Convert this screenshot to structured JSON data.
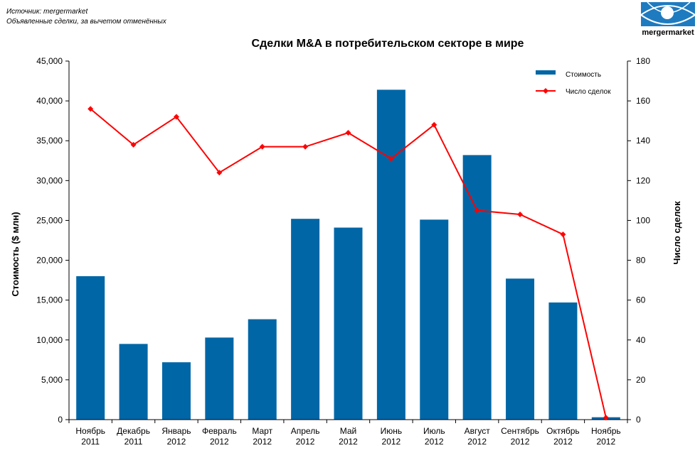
{
  "source": {
    "line1": "Источник: mergermarket",
    "line2": "Объявленные сделки, за вычетом отменённых"
  },
  "logo": {
    "text": "mergermarket",
    "color": "#1f7bbf"
  },
  "chart_data": {
    "type": "bar+line",
    "title": "Сделки M&A в потребительском секторе в мире",
    "ylabel": "Стоимость ($ млн)",
    "y2label": "Число сделок",
    "ylim": [
      0,
      45000
    ],
    "y2lim": [
      0,
      180
    ],
    "yticks": [
      "0",
      "5,000",
      "10,000",
      "15,000",
      "20,000",
      "25,000",
      "30,000",
      "35,000",
      "40,000",
      "45,000"
    ],
    "y2ticks": [
      "0",
      "20",
      "40",
      "60",
      "80",
      "100",
      "120",
      "140",
      "160",
      "180"
    ],
    "categories": [
      [
        "Ноябрь",
        "2011"
      ],
      [
        "Декабрь",
        "2011"
      ],
      [
        "Январь",
        "2012"
      ],
      [
        "Февраль",
        "2012"
      ],
      [
        "Март",
        "2012"
      ],
      [
        "Апрель",
        "2012"
      ],
      [
        "Май",
        "2012"
      ],
      [
        "Июнь",
        "2012"
      ],
      [
        "Июль",
        "2012"
      ],
      [
        "Август",
        "2012"
      ],
      [
        "Сентябрь",
        "2012"
      ],
      [
        "Октябрь",
        "2012"
      ],
      [
        "Ноябрь",
        "2012"
      ]
    ],
    "series": [
      {
        "name": "Стоимость",
        "type": "bar",
        "axis": "left",
        "color": "#0066a6",
        "values": [
          18000,
          9500,
          7200,
          10300,
          12600,
          25200,
          24100,
          41400,
          25100,
          33200,
          17700,
          14700,
          300
        ]
      },
      {
        "name": "Число сделок",
        "type": "line",
        "axis": "right",
        "color": "#ff0000",
        "values": [
          156,
          138,
          152,
          124,
          137,
          137,
          144,
          131,
          148,
          105,
          103,
          93,
          1
        ]
      }
    ],
    "legend": "top-right",
    "grid": false
  }
}
